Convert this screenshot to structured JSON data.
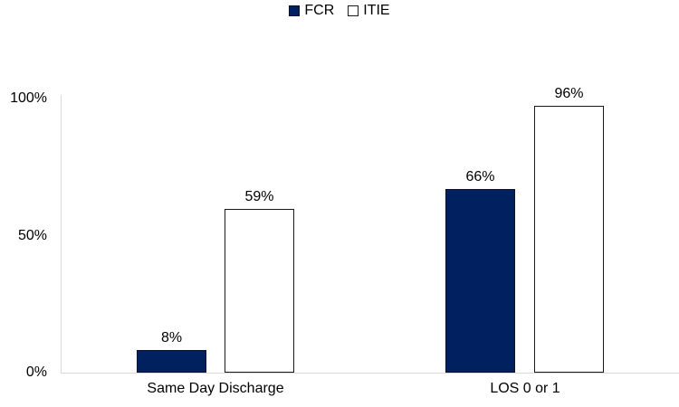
{
  "chart_data": {
    "type": "bar",
    "title": "",
    "xlabel": "",
    "ylabel": "",
    "categories": [
      "Same Day Discharge",
      "LOS 0 or 1"
    ],
    "series": [
      {
        "name": "FCR",
        "values": [
          8,
          66
        ],
        "color": "#002060",
        "border_color": "#0b1030"
      },
      {
        "name": "ITIE",
        "values": [
          59,
          96
        ],
        "color": "#FFFFFF",
        "border_color": "#1a1a1a"
      }
    ],
    "value_labels": [
      [
        "8%",
        "66%"
      ],
      [
        "59%",
        "96%"
      ]
    ],
    "yticks": [
      "100%",
      "50%",
      "0%"
    ],
    "ylim": [
      0,
      100
    ],
    "grid": false,
    "legend_position": "top",
    "axis_color": "#D9D9D9",
    "background": "#FFFFFF"
  }
}
